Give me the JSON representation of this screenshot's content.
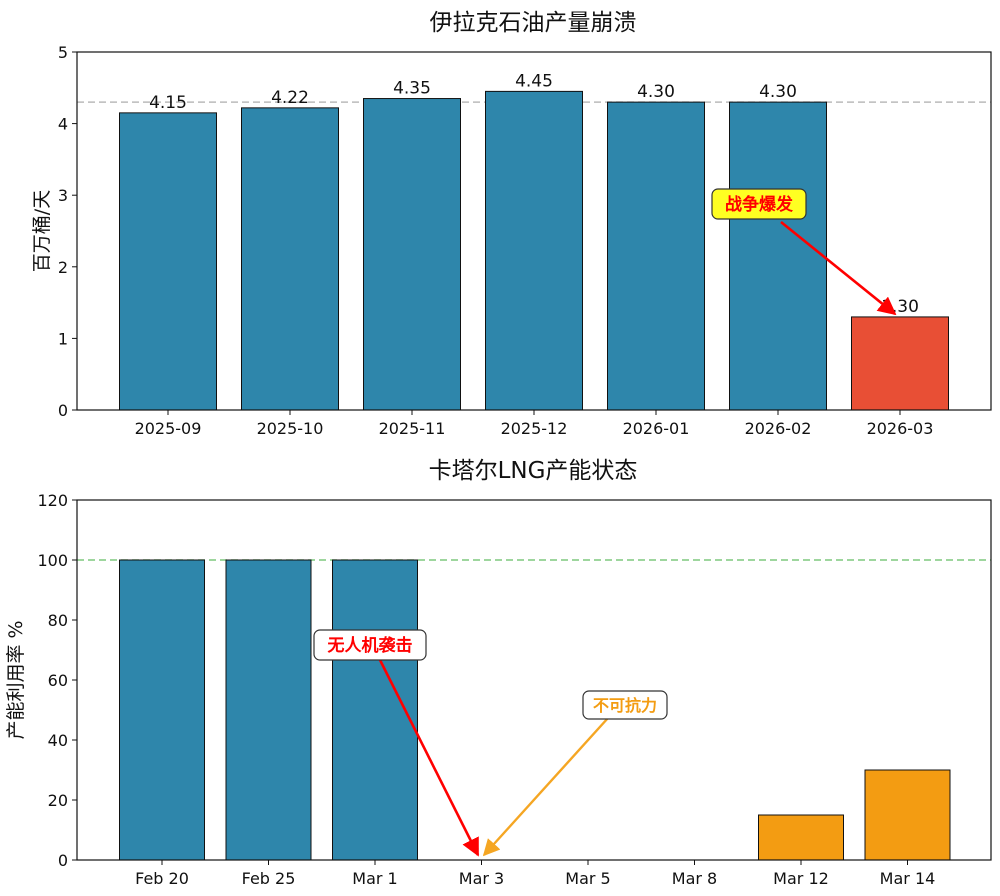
{
  "chart_data": [
    {
      "type": "bar",
      "title": "伊拉克石油产量崩溃",
      "xlabel": "",
      "ylabel": "百万桶/天",
      "categories": [
        "2025-09",
        "2025-10",
        "2025-11",
        "2025-12",
        "2026-01",
        "2026-02",
        "2026-03"
      ],
      "values": [
        4.15,
        4.22,
        4.35,
        4.45,
        4.3,
        4.3,
        1.3
      ],
      "value_labels": [
        "4.15",
        "4.22",
        "4.35",
        "4.45",
        "4.30",
        "4.30",
        "1.30"
      ],
      "bar_colors": [
        "#2e86ab",
        "#2e86ab",
        "#2e86ab",
        "#2e86ab",
        "#2e86ab",
        "#2e86ab",
        "#e84f35"
      ],
      "ylim": [
        0,
        5
      ],
      "yticks": [
        0,
        1,
        2,
        3,
        4,
        5
      ],
      "reference_line": {
        "y": 4.3,
        "color": "#bbbbbb",
        "style": "dashed"
      },
      "annotations": [
        {
          "text": "战争爆发",
          "text_color": "#ff0000",
          "box_color": "#ffff22",
          "arrow_color": "#ff0000",
          "points_to": {
            "category": "2026-03",
            "y": 1.3
          }
        }
      ],
      "grid": false
    },
    {
      "type": "bar",
      "title": "卡塔尔LNG产能状态",
      "xlabel": "",
      "ylabel": "产能利用率 %",
      "categories": [
        "Feb 20",
        "Feb 25",
        "Mar 1",
        "Mar 3",
        "Mar 5",
        "Mar 8",
        "Mar 12",
        "Mar 14"
      ],
      "values": [
        100,
        100,
        100,
        0,
        0,
        0,
        15,
        30
      ],
      "bar_colors": [
        "#2e86ab",
        "#2e86ab",
        "#2e86ab",
        "#2e86ab",
        "#2e86ab",
        "#2e86ab",
        "#f39c12",
        "#f39c12"
      ],
      "ylim": [
        0,
        120
      ],
      "yticks": [
        0,
        20,
        40,
        60,
        80,
        100,
        120
      ],
      "reference_line": {
        "y": 100,
        "color": "#7fc97f",
        "style": "dashed"
      },
      "annotations": [
        {
          "text": "无人机袭击",
          "text_color": "#ff0000",
          "box_color": "#ffffff",
          "arrow_color": "#ff0000",
          "points_to": {
            "category": "Mar 3",
            "y": 0
          }
        },
        {
          "text": "不可抗力",
          "text_color": "#f39c12",
          "box_color": "#ffffff",
          "arrow_color": "#f5a623",
          "points_to": {
            "category": "Mar 3",
            "y": 0
          }
        }
      ],
      "grid": false
    }
  ]
}
